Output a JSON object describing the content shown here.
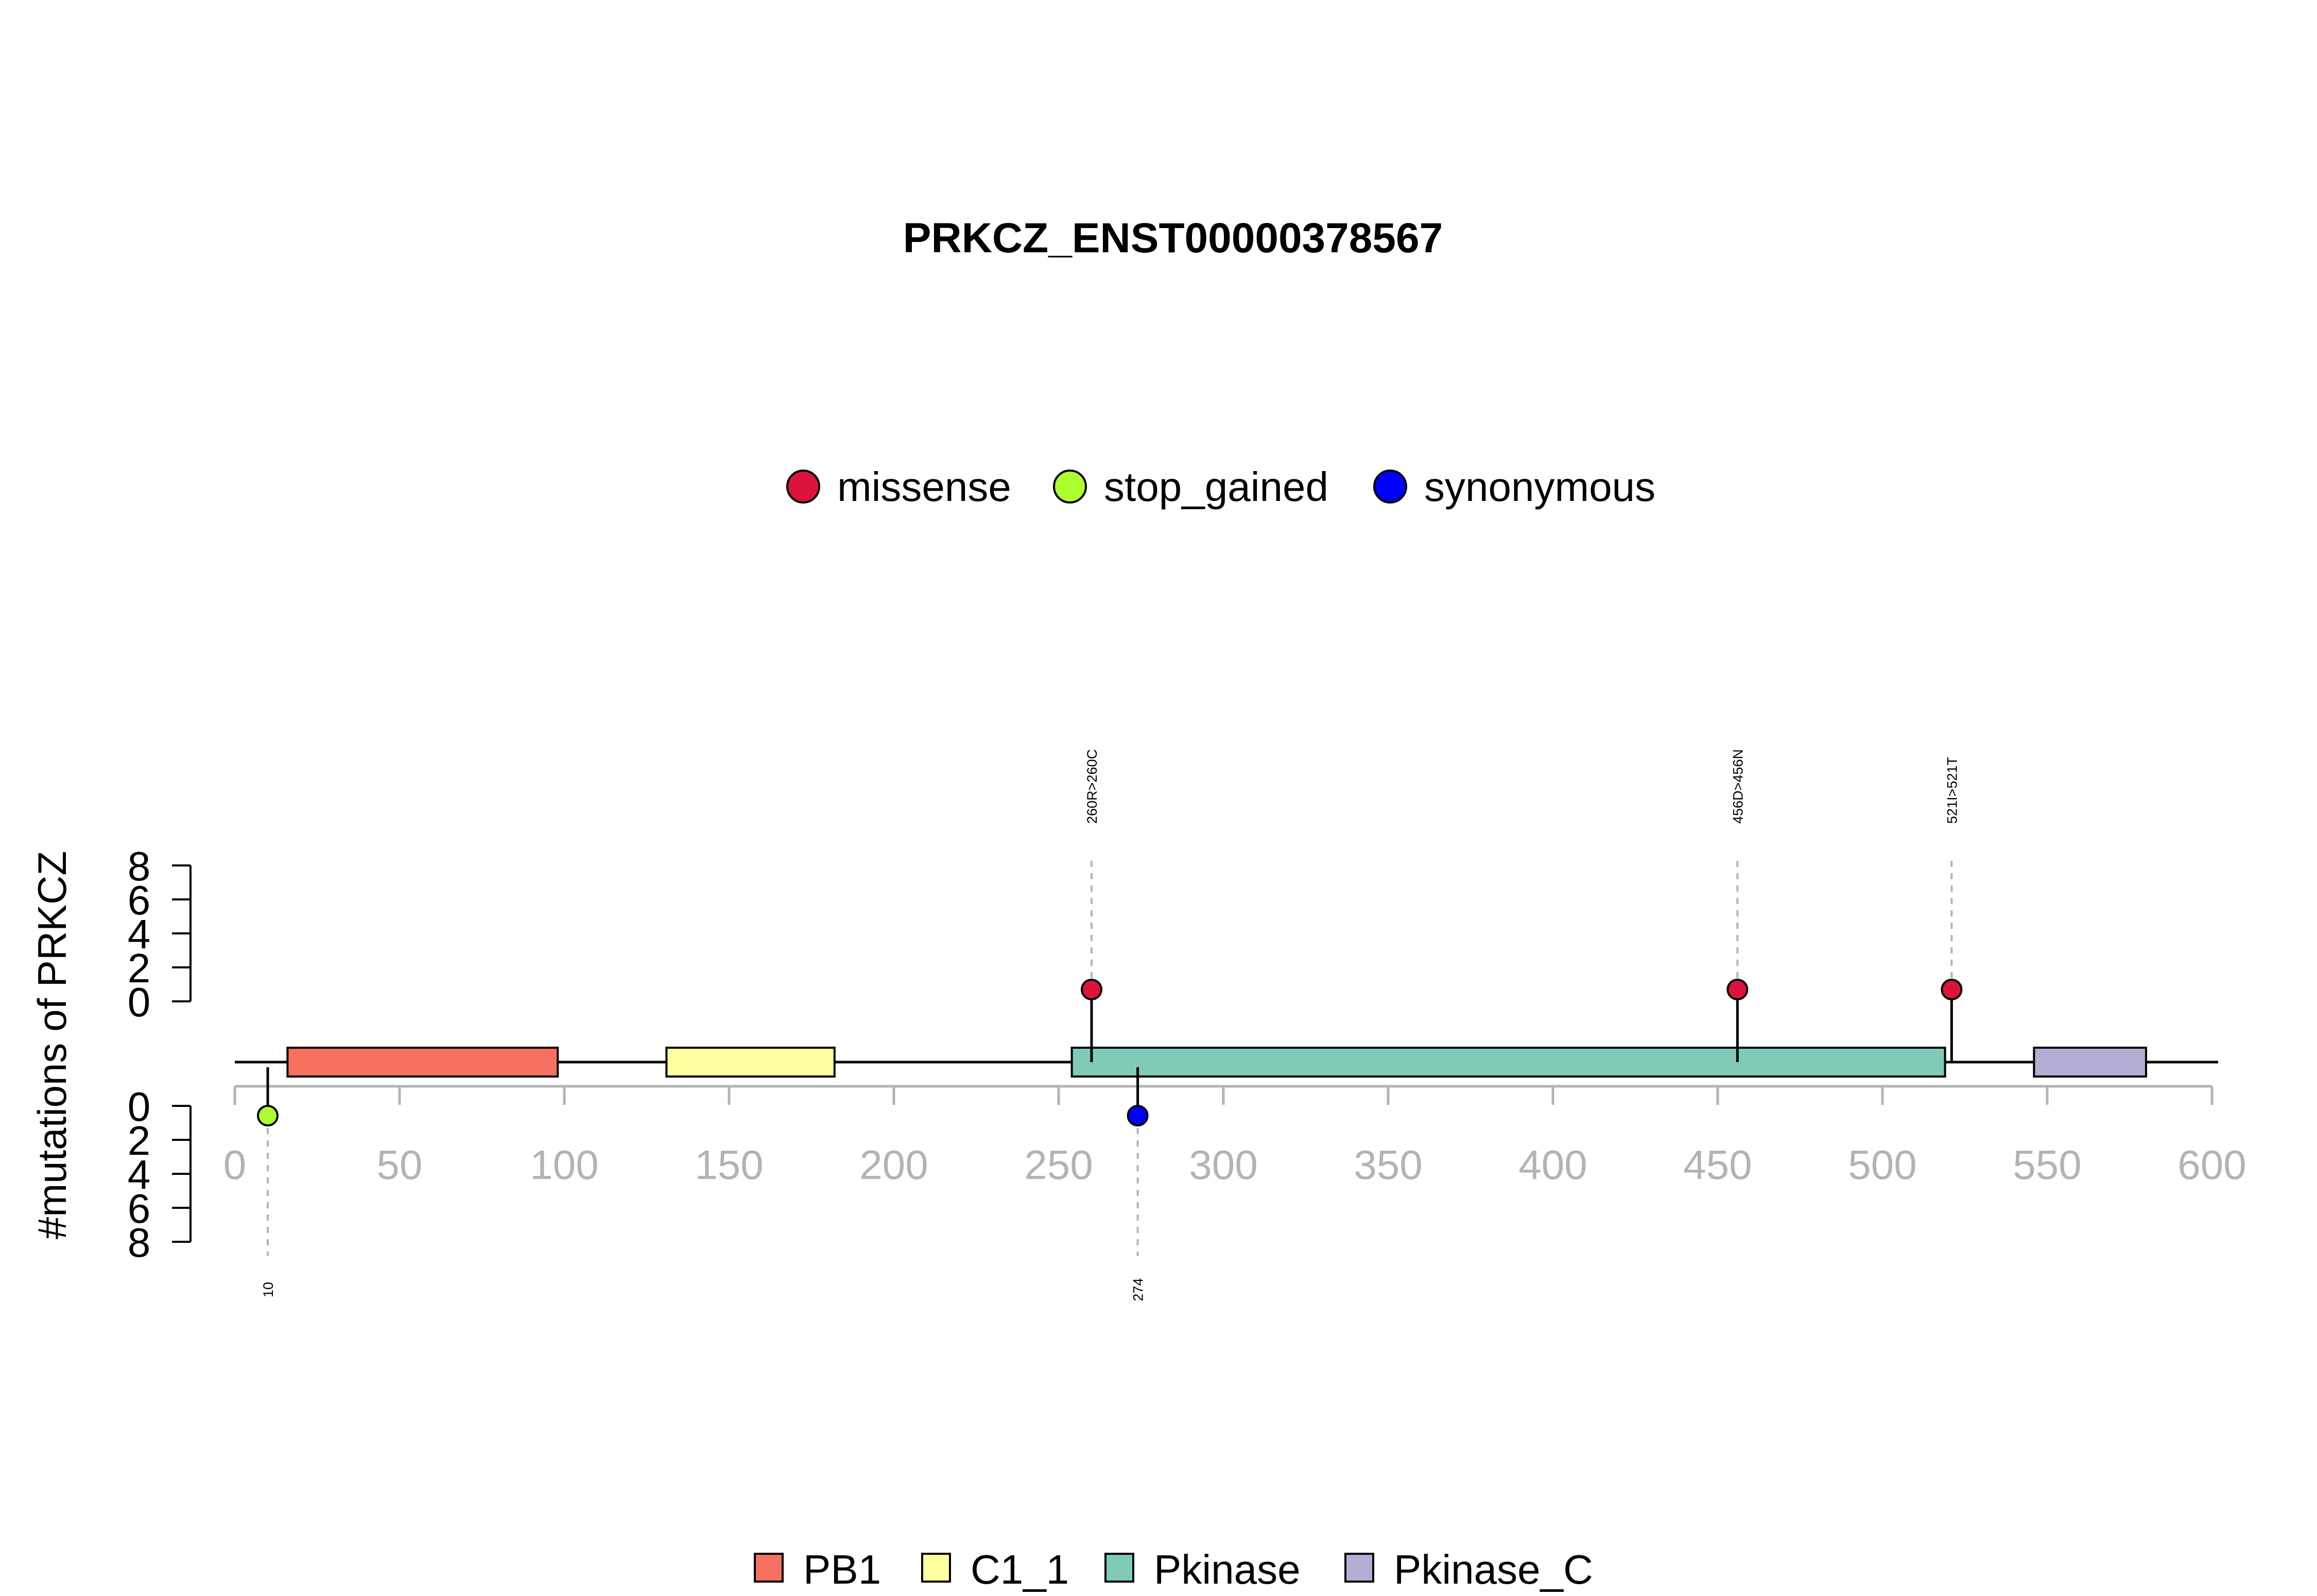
{
  "chart_data": {
    "type": "lollipop",
    "title": "PRKCZ_ENST00000378567",
    "ylabel": "#mutations of PRKCZ",
    "xlim": [
      0,
      600
    ],
    "x_ticks": [
      0,
      50,
      100,
      150,
      200,
      250,
      300,
      350,
      400,
      450,
      500,
      550,
      600
    ],
    "y_ticks": [
      0,
      2,
      4,
      6,
      8
    ],
    "mutation_types": [
      {
        "name": "missense",
        "color": "#DC143C"
      },
      {
        "name": "stop_gained",
        "color": "#ADFF2F"
      },
      {
        "name": "synonymous",
        "color": "#0000FF"
      }
    ],
    "mutations": [
      {
        "position": 260,
        "count": 1,
        "type": "missense",
        "label": "260R>260C",
        "side": "top"
      },
      {
        "position": 456,
        "count": 1,
        "type": "missense",
        "label": "456D>456N",
        "side": "top"
      },
      {
        "position": 521,
        "count": 1,
        "type": "missense",
        "label": "521I>521T",
        "side": "top"
      },
      {
        "position": 10,
        "count": 1,
        "type": "stop_gained",
        "label": "10",
        "side": "bottom"
      },
      {
        "position": 274,
        "count": 1,
        "type": "synonymous",
        "label": "274",
        "side": "bottom"
      }
    ],
    "domains": [
      {
        "name": "PB1",
        "start": 16,
        "end": 98,
        "color": "#F87060"
      },
      {
        "name": "C1_1",
        "start": 131,
        "end": 182,
        "color": "#FFFFA0"
      },
      {
        "name": "Pkinase",
        "start": 254,
        "end": 519,
        "color": "#80CAB8"
      },
      {
        "name": "Pkinase_C",
        "start": 546,
        "end": 580,
        "color": "#B4AED4"
      }
    ]
  }
}
